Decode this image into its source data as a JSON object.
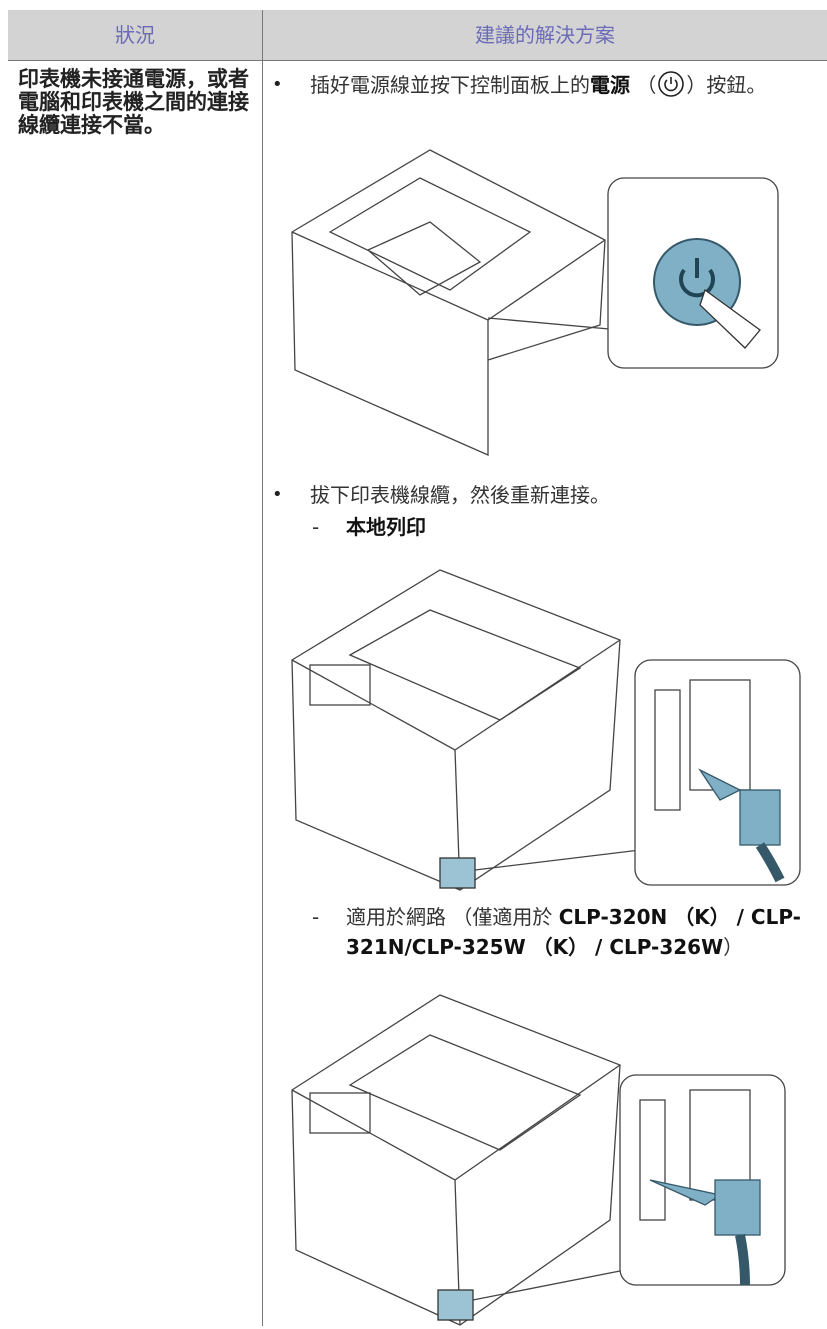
{
  "table": {
    "headers": [
      "狀況",
      "建議的解決方案"
    ],
    "condition": "印表機未接通電源，或者電腦和印表機之間的連接線纜連接不當。",
    "solutions": [
      {
        "parts": [
          "插好電源線並按下控制面板上的",
          "電源",
          "（",
          "）按鈕。"
        ]
      },
      {
        "text": "拔下印表機線纜，然後重新連接。",
        "sub_items": [
          {
            "parts": [
              "本地列印"
            ]
          },
          {
            "parts": [
              "適用於網路 （僅適用於 ",
              "CLP-320N （K） / CLP-321N/CLP-325W （K） / CLP-326W",
              "）"
            ]
          }
        ]
      }
    ]
  }
}
